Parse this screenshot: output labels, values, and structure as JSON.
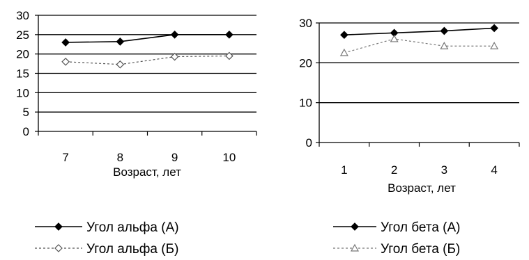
{
  "chart_data": [
    {
      "type": "line",
      "categories": [
        "7",
        "8",
        "9",
        "10"
      ],
      "ylim": [
        0,
        30
      ],
      "yticks": [
        0,
        5,
        10,
        15,
        20,
        25,
        30
      ],
      "xlabel": "Возраст, лет",
      "grid": true,
      "legend": "bottom",
      "series": [
        {
          "name": "Угол альфа (А)",
          "values": [
            23,
            23.2,
            25,
            25
          ],
          "color": "#000000",
          "dash": "solid",
          "marker": "diamond-filled"
        },
        {
          "name": "Угол альфа (Б)",
          "values": [
            18,
            17.3,
            19.3,
            19.5
          ],
          "color": "#555555",
          "dash": "dashed",
          "marker": "diamond-open"
        }
      ]
    },
    {
      "type": "line",
      "categories": [
        "1",
        "2",
        "3",
        "4"
      ],
      "ylim": [
        0,
        30
      ],
      "yticks": [
        0,
        10,
        20,
        30
      ],
      "xlabel": "Возраст, лет",
      "grid": true,
      "legend": "bottom",
      "series": [
        {
          "name": "Угол бета (А)",
          "values": [
            27,
            27.5,
            28,
            28.7
          ],
          "color": "#000000",
          "dash": "solid",
          "marker": "diamond-filled"
        },
        {
          "name": "Угол бета (Б)",
          "values": [
            22.5,
            26,
            24.2,
            24.2
          ],
          "color": "#777777",
          "dash": "dashed",
          "marker": "triangle-open"
        }
      ]
    }
  ]
}
